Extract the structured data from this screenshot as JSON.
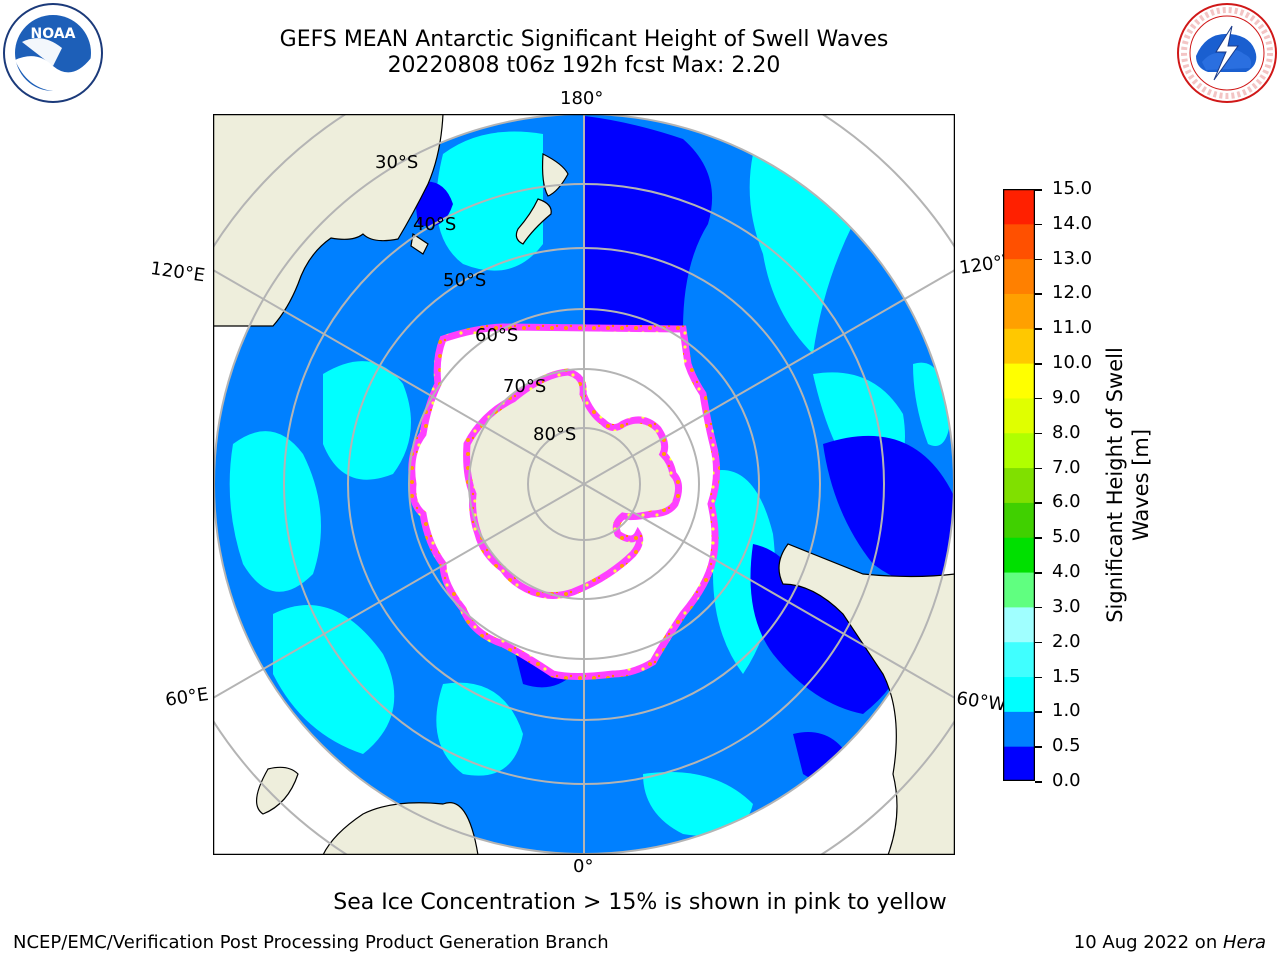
{
  "title": {
    "line1": "GEFS MEAN Antarctic Significant Height of Swell Waves",
    "line2": "20220808 t06z 192h fcst   Max: 2.20"
  },
  "logos": {
    "noaa": {
      "text": "NOAA",
      "ring_text": "NATIONAL OCEANIC AND ATMOSPHERIC ADMINISTRATION · U.S. DEPARTMENT OF COMMERCE"
    },
    "nws": {
      "ring_text": "NATIONAL WEATHER SERVICE"
    }
  },
  "map": {
    "projection": "south-polar-stereographic",
    "longitude_labels": {
      "top": "180°",
      "bottom": "0°",
      "upper_left": "120°E",
      "upper_right": "120°W",
      "lower_left": "60°E",
      "lower_right": "60°W"
    },
    "latitude_labels": [
      "30°S",
      "40°S",
      "50°S",
      "60°S",
      "70°S",
      "80°S"
    ],
    "colors": {
      "land": "#eeeedc",
      "sea_ice_edge": "#ff40ff",
      "ice_interior": "#ffffff",
      "grid": "#b4b4b4"
    }
  },
  "colorbar": {
    "label_line1": "Significant Height of Swell",
    "label_line2": "Waves [m]",
    "ticks": [
      "15.0",
      "14.0",
      "13.0",
      "12.0",
      "11.0",
      "10.0",
      "9.0",
      "8.0",
      "7.0",
      "6.0",
      "5.0",
      "4.0",
      "3.0",
      "2.0",
      "1.5",
      "1.0",
      "0.5",
      "0.0"
    ],
    "colors_bottom_to_top": [
      "#0000ff",
      "#0080ff",
      "#00ffff",
      "#40ffff",
      "#a0ffff",
      "#60ff80",
      "#00e000",
      "#40d000",
      "#80e000",
      "#b0ff00",
      "#e0ff00",
      "#ffff00",
      "#ffc800",
      "#ffa000",
      "#ff8000",
      "#ff5000",
      "#ff2000"
    ]
  },
  "caption": "Sea Ice Concentration > 15% is shown in pink to yellow",
  "footer": {
    "left": "NCEP/EMC/Verification Post Processing Product Generation Branch",
    "right_prefix": "10 Aug 2022 on ",
    "right_host": "Hera"
  }
}
